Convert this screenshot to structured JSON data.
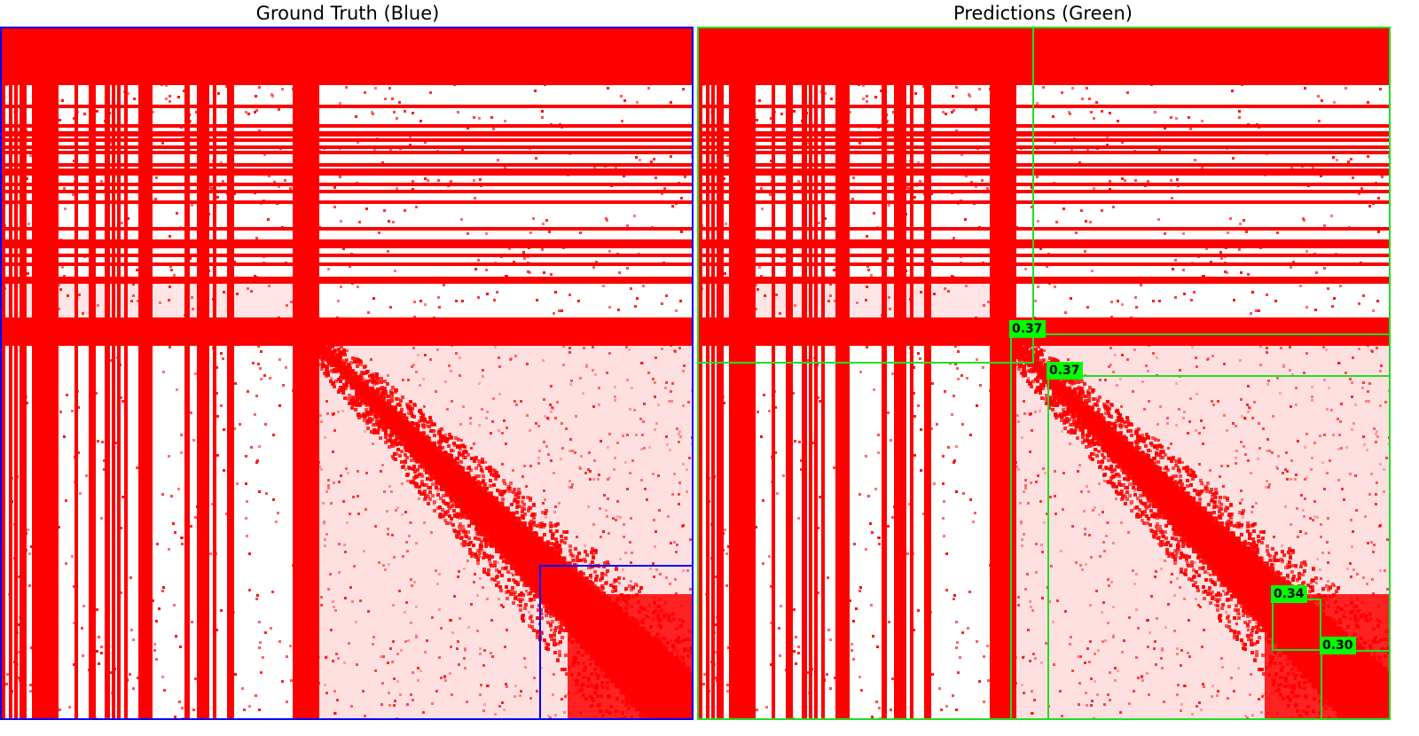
{
  "titles": {
    "left": "Ground Truth (Blue)",
    "right": "Predictions (Green)"
  },
  "colors": {
    "heatmap": "#ff0000",
    "ground_truth_box": "#0000ff",
    "prediction_box": "#22dd22",
    "score_label_bg": "#00ff00"
  },
  "predictions": {
    "scores": [
      "0.37",
      "0.37",
      "0.34",
      "0.30"
    ]
  }
}
